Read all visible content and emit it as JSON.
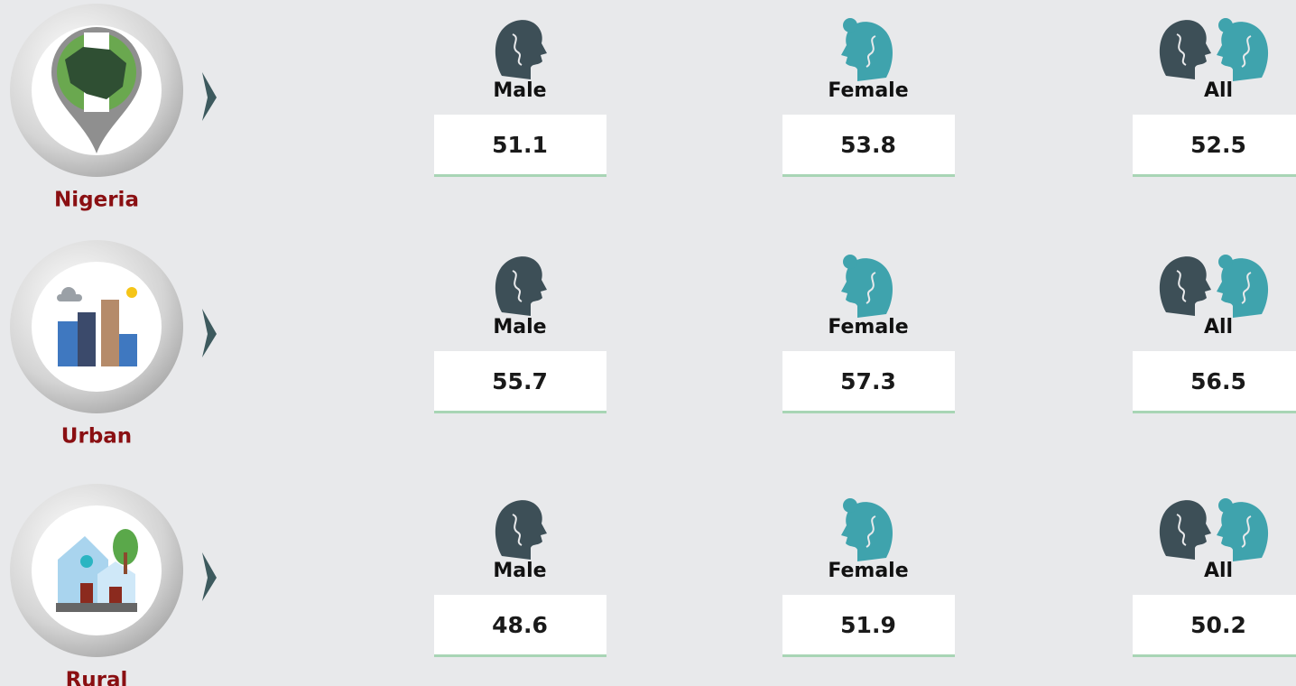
{
  "rows": [
    {
      "region": "Nigeria",
      "cells": [
        {
          "label": "Male",
          "value": 51.1
        },
        {
          "label": "Female",
          "value": 53.8
        },
        {
          "label": "All",
          "value": 52.5
        }
      ]
    },
    {
      "region": "Urban",
      "cells": [
        {
          "label": "Male",
          "value": 55.7
        },
        {
          "label": "Female",
          "value": 57.3
        },
        {
          "label": "All",
          "value": 56.5
        }
      ]
    },
    {
      "region": "Rural",
      "cells": [
        {
          "label": "Male",
          "value": 48.6
        },
        {
          "label": "Female",
          "value": 51.9
        },
        {
          "label": "All",
          "value": 50.2
        }
      ]
    }
  ]
}
